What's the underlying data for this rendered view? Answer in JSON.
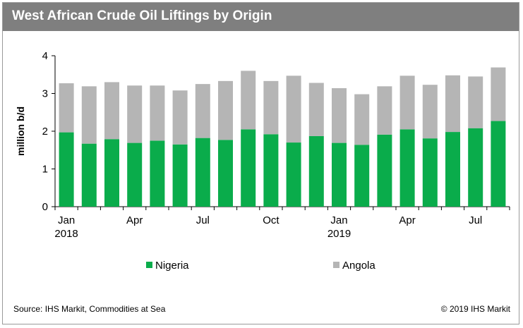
{
  "header": {
    "title": "West African Crude Oil Liftings by Origin"
  },
  "footer": {
    "source": "Source: IHS Markit, Commodities at Sea",
    "copyright": "© 2019 IHS Markit"
  },
  "colors": {
    "nigeria": "#0aac4b",
    "angola": "#b5b5b5",
    "title_bar": "#7f7f7f"
  },
  "chart_data": {
    "type": "bar",
    "stacked": true,
    "ylabel": "million b/d",
    "ylim": [
      0,
      4
    ],
    "yticks": [
      0,
      1,
      2,
      3,
      4
    ],
    "x_tick_labels": [
      {
        "index": 0,
        "label": "Jan",
        "sublabel": "2018"
      },
      {
        "index": 3,
        "label": "Apr",
        "sublabel": ""
      },
      {
        "index": 6,
        "label": "Jul",
        "sublabel": ""
      },
      {
        "index": 9,
        "label": "Oct",
        "sublabel": ""
      },
      {
        "index": 12,
        "label": "Jan",
        "sublabel": "2019"
      },
      {
        "index": 15,
        "label": "Apr",
        "sublabel": ""
      },
      {
        "index": 18,
        "label": "Jul",
        "sublabel": ""
      }
    ],
    "categories": [
      "2018-01",
      "2018-02",
      "2018-03",
      "2018-04",
      "2018-05",
      "2018-06",
      "2018-07",
      "2018-08",
      "2018-09",
      "2018-10",
      "2018-11",
      "2018-12",
      "2019-01",
      "2019-02",
      "2019-03",
      "2019-04",
      "2019-05",
      "2019-06",
      "2019-07",
      "2019-08"
    ],
    "legend_position": "bottom",
    "series": [
      {
        "name": "Nigeria",
        "color": "#0aac4b",
        "values": [
          1.97,
          1.67,
          1.79,
          1.69,
          1.75,
          1.65,
          1.82,
          1.77,
          2.05,
          1.92,
          1.7,
          1.87,
          1.69,
          1.64,
          1.91,
          2.05,
          1.81,
          1.98,
          2.08,
          2.27
        ]
      },
      {
        "name": "Angola",
        "color": "#b5b5b5",
        "values": [
          1.3,
          1.52,
          1.51,
          1.52,
          1.46,
          1.43,
          1.43,
          1.56,
          1.55,
          1.41,
          1.77,
          1.41,
          1.45,
          1.34,
          1.28,
          1.42,
          1.42,
          1.5,
          1.37,
          1.42
        ]
      }
    ]
  }
}
